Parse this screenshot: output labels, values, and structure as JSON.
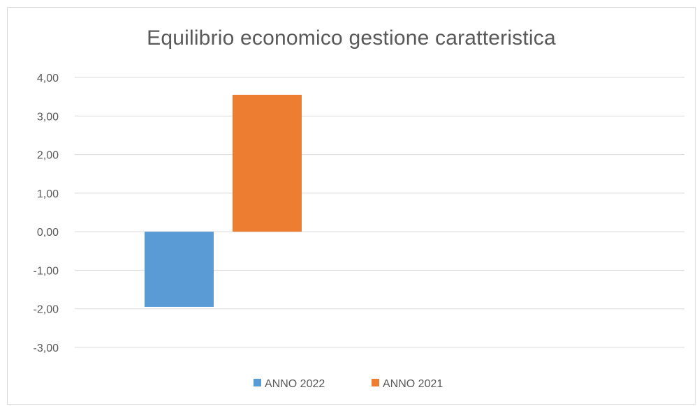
{
  "chart_data": {
    "type": "bar",
    "title": "Equilibrio economico gestione caratteristica",
    "categories": [
      ""
    ],
    "series": [
      {
        "name": "ANNO 2022",
        "values": [
          -1.95
        ],
        "color": "#5b9bd5"
      },
      {
        "name": "ANNO 2021",
        "values": [
          3.55
        ],
        "color": "#ed7d31"
      }
    ],
    "ylim": [
      -3,
      4
    ],
    "y_ticks": [
      "4,00",
      "3,00",
      "2,00",
      "1,00",
      "0,00",
      "-1,00",
      "-2,00",
      "-3,00"
    ],
    "grid": true,
    "legend_placement": "bottom"
  }
}
